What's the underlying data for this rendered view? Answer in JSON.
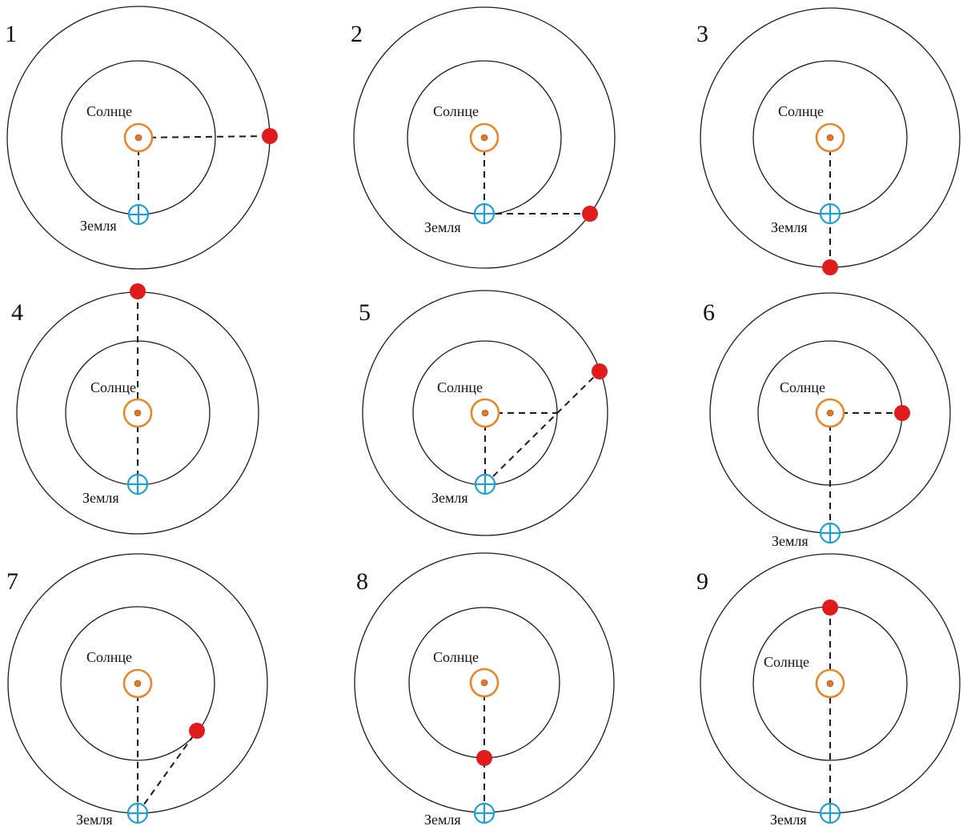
{
  "labels": {
    "sun": "Солнце",
    "earth": "Земля"
  },
  "colors": {
    "sun_ring": "#e8872a",
    "sun_core": "#e07a2a",
    "earth": "#1e9fd6",
    "planet": "#e01b1b",
    "orbit": "#1a1a1a"
  },
  "panels": [
    {
      "number": "1"
    },
    {
      "number": "2"
    },
    {
      "number": "3"
    },
    {
      "number": "4"
    },
    {
      "number": "5"
    },
    {
      "number": "6"
    },
    {
      "number": "7"
    },
    {
      "number": "8"
    },
    {
      "number": "9"
    }
  ]
}
